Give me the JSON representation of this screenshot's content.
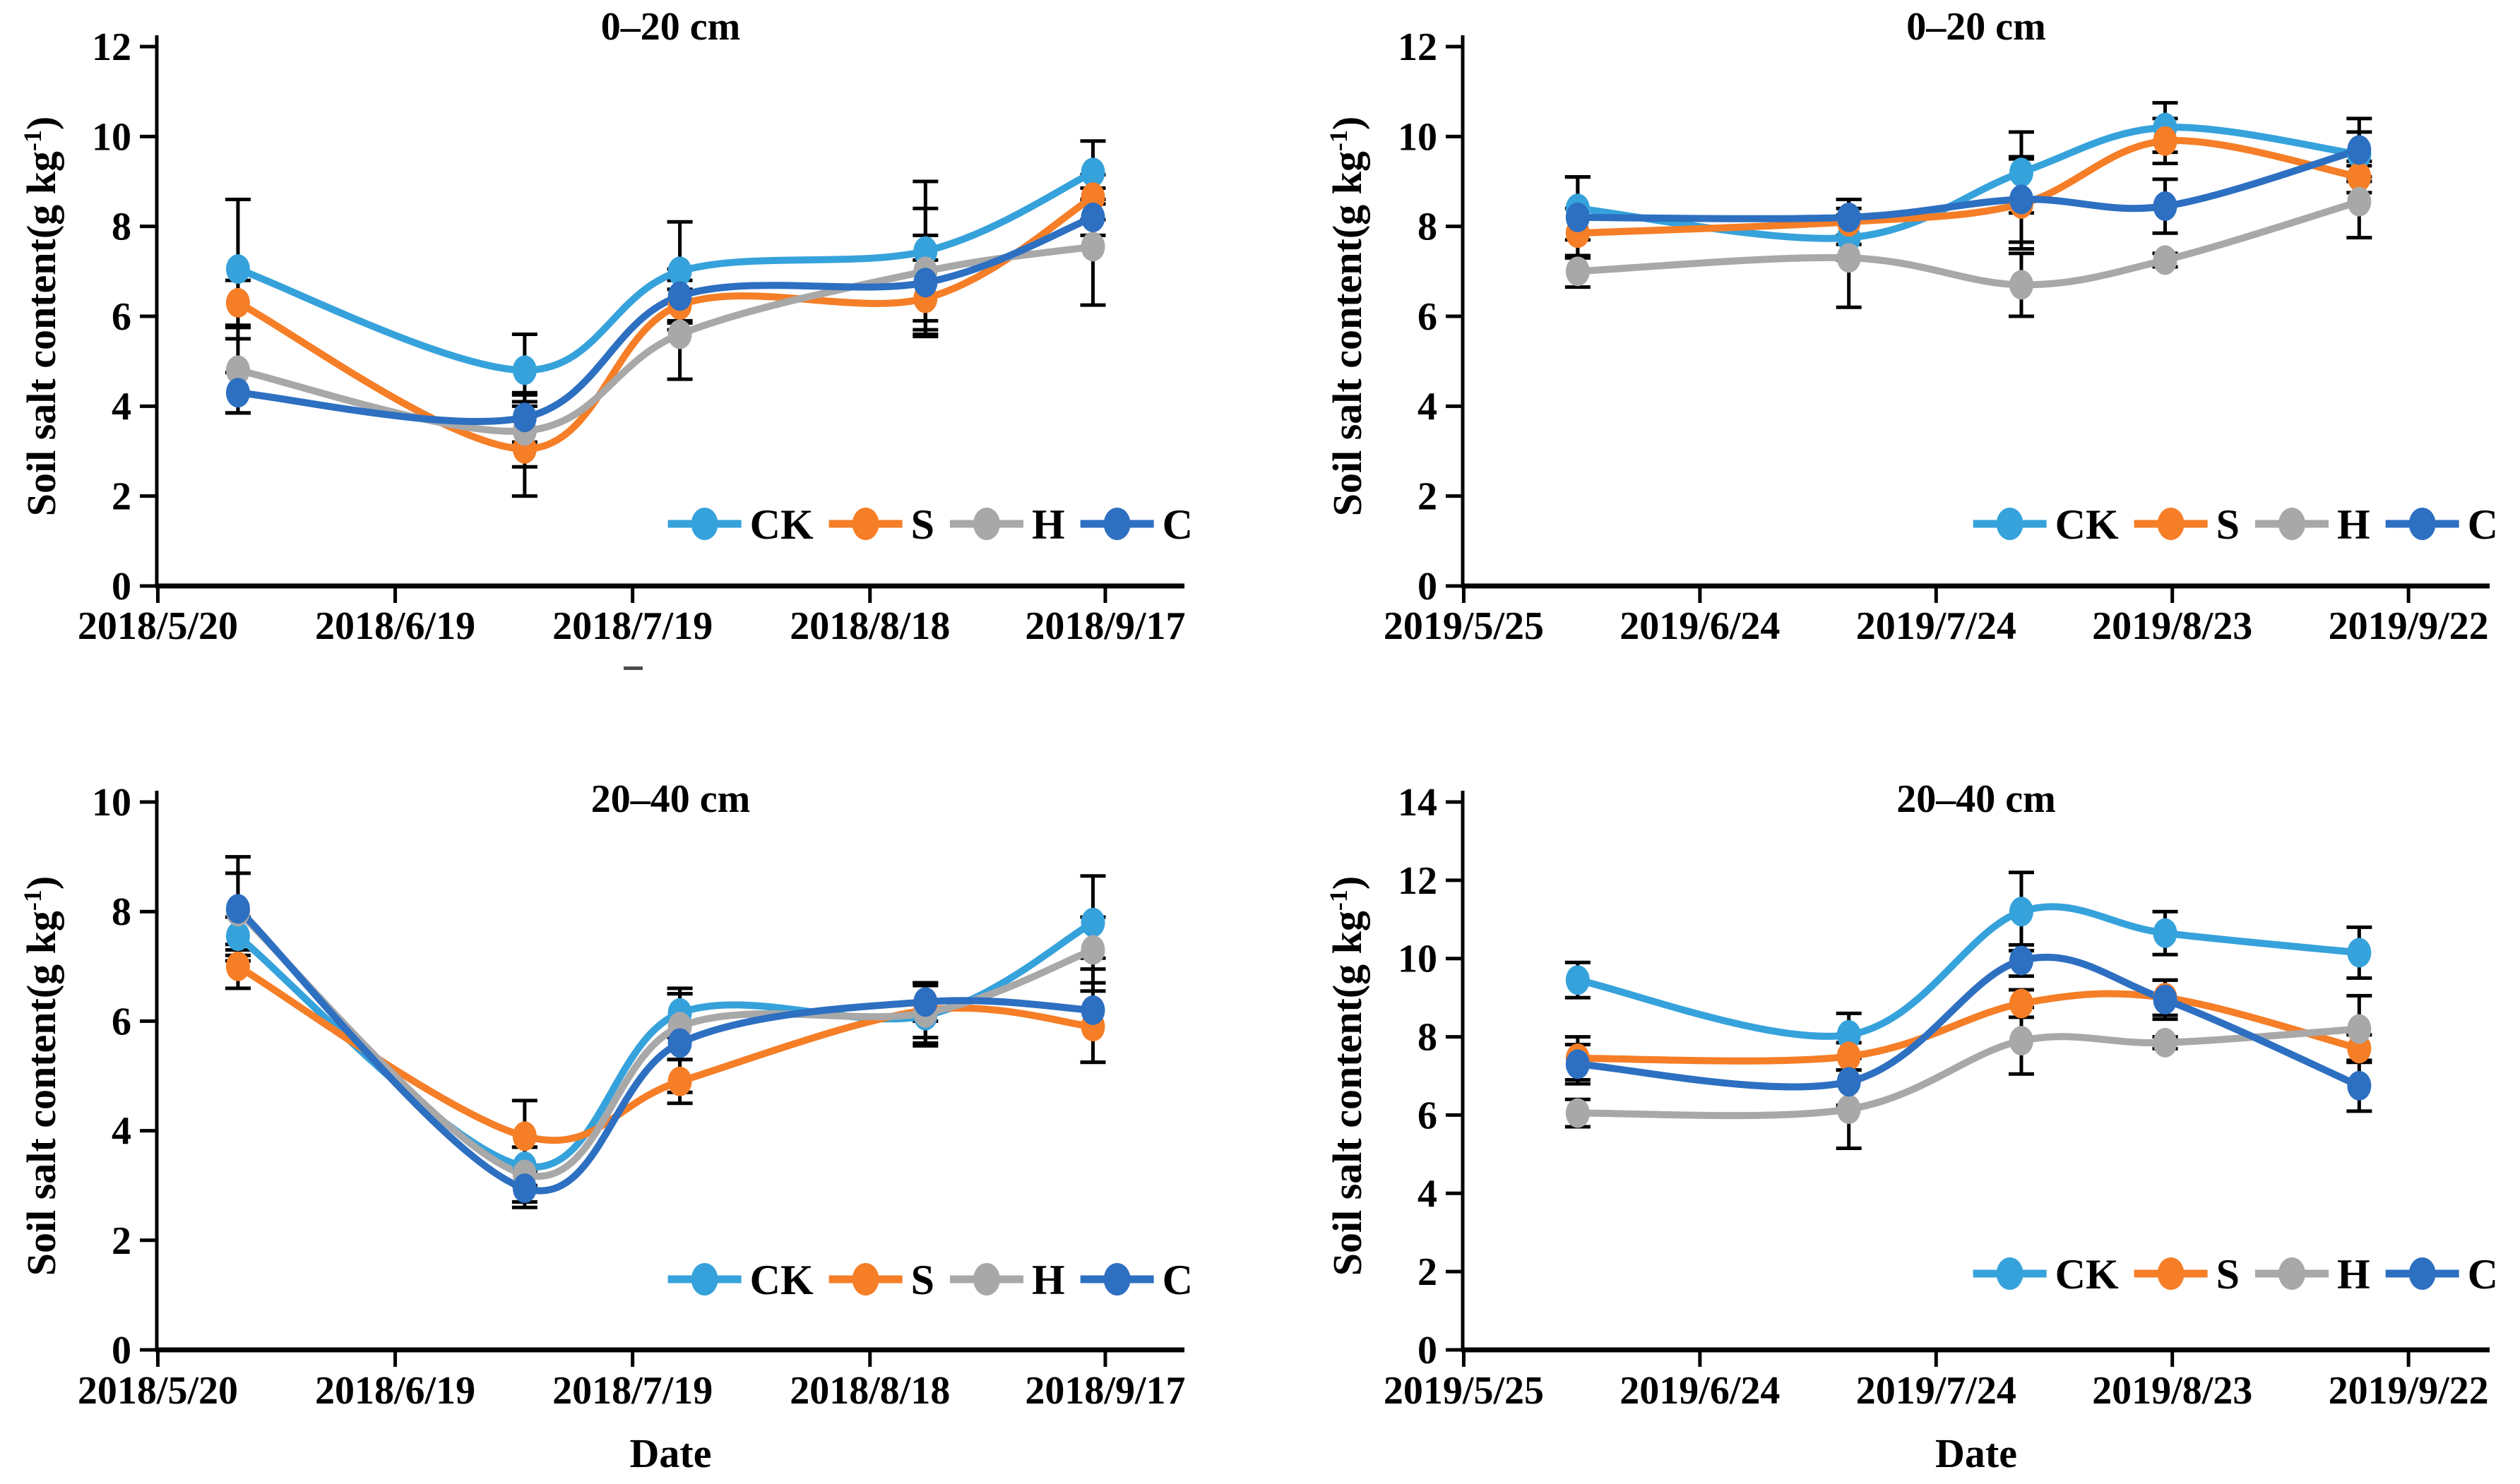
{
  "figure": {
    "ylabel": {
      "text": "Soil salt content(g kg",
      "sup": "-1",
      "close": ")"
    },
    "xlabel": "Date",
    "legend_order": [
      "CK",
      "S",
      "H",
      "C"
    ],
    "colors": {
      "CK": "#36A2DB",
      "S": "#F57E27",
      "H": "#A8A8A8",
      "C": "#2D6FC1"
    },
    "axis_color": "#000000",
    "background": "#ffffff"
  },
  "chart_data": [
    {
      "id": "0-20cm-2018",
      "type": "line",
      "title": "0–20 cm",
      "ylim": [
        0,
        12
      ],
      "ytick_labels": [
        "0",
        "2",
        "4",
        "6",
        "8",
        "10",
        "12"
      ],
      "x_tick_labels": [
        "2018/5/20",
        "2018/6/19",
        "2018/7/19",
        "2018/8/18",
        "2018/9/17"
      ],
      "x_tick_positions": [
        0.001,
        0.232,
        0.463,
        0.694,
        0.923
      ],
      "x_point_positions": [
        0.079,
        0.358,
        0.509,
        0.748,
        0.911
      ],
      "has_date_label": false,
      "legend": [
        "CK",
        "S",
        "H",
        "C"
      ],
      "series": [
        {
          "name": "CK",
          "values": [
            7.05,
            4.8,
            7.0,
            7.45,
            9.2
          ],
          "errors": [
            1.55,
            0.8,
            1.1,
            1.55,
            0.7
          ]
        },
        {
          "name": "S",
          "values": [
            6.3,
            3.05,
            6.25,
            6.4,
            8.65
          ],
          "errors": [
            0.5,
            1.05,
            0.55,
            0.85,
            0.5
          ]
        },
        {
          "name": "H",
          "values": [
            4.8,
            3.45,
            5.6,
            7.0,
            7.55
          ],
          "errors": [
            0.95,
            0.8,
            1.0,
            1.4,
            1.3
          ]
        },
        {
          "name": "C",
          "values": [
            4.3,
            3.75,
            6.45,
            6.75,
            8.2
          ],
          "errors": [
            0.45,
            0.55,
            0.6,
            1.05,
            0.4
          ]
        }
      ]
    },
    {
      "id": "0-20cm-2019",
      "type": "line",
      "title": "0–20 cm",
      "ylim": [
        0,
        12
      ],
      "ytick_labels": [
        "0",
        "2",
        "4",
        "6",
        "8",
        "10",
        "12"
      ],
      "x_tick_labels": [
        "2019/5/25",
        "2019/6/24",
        "2019/7/24",
        "2019/8/23",
        "2019/9/22"
      ],
      "x_tick_positions": [
        0.001,
        0.231,
        0.461,
        0.691,
        0.921
      ],
      "x_point_positions": [
        0.112,
        0.376,
        0.544,
        0.684,
        0.873
      ],
      "has_date_label": false,
      "legend": [
        "CK",
        "S",
        "H",
        "C"
      ],
      "series": [
        {
          "name": "CK",
          "values": [
            8.4,
            7.75,
            9.2,
            10.2,
            9.6
          ],
          "errors": [
            0.7,
            0.5,
            0.9,
            0.55,
            0.5
          ]
        },
        {
          "name": "S",
          "values": [
            7.85,
            8.1,
            8.5,
            9.9,
            9.1
          ],
          "errors": [
            0.55,
            0.5,
            1.0,
            0.5,
            0.35
          ]
        },
        {
          "name": "H",
          "values": [
            7.0,
            7.3,
            6.7,
            7.25,
            8.55
          ],
          "errors": [
            0.35,
            1.1,
            0.7,
            0.15,
            0.8
          ]
        },
        {
          "name": "C",
          "values": [
            8.2,
            8.2,
            8.6,
            8.45,
            9.7
          ],
          "errors": [
            0.9,
            0.4,
            0.95,
            0.6,
            0.7
          ]
        }
      ]
    },
    {
      "id": "20-40cm-2018",
      "type": "line",
      "title": "20–40 cm",
      "ylim": [
        0,
        10
      ],
      "ytick_labels": [
        "0",
        "2",
        "4",
        "6",
        "8",
        "10"
      ],
      "x_tick_labels": [
        "2018/5/20",
        "2018/6/19",
        "2018/7/19",
        "2018/8/18",
        "2018/9/17"
      ],
      "x_tick_positions": [
        0.001,
        0.232,
        0.463,
        0.694,
        0.923
      ],
      "x_point_positions": [
        0.079,
        0.358,
        0.509,
        0.748,
        0.911
      ],
      "has_date_label": true,
      "legend": [
        "CK",
        "S",
        "H",
        "C"
      ],
      "series": [
        {
          "name": "CK",
          "values": [
            7.55,
            3.35,
            6.15,
            6.1,
            7.8
          ],
          "errors": [
            0.35,
            0.35,
            0.45,
            0.55,
            0.85
          ]
        },
        {
          "name": "S",
          "values": [
            7.0,
            3.9,
            4.9,
            6.2,
            5.9
          ],
          "errors": [
            0.4,
            0.65,
            0.4,
            0.5,
            0.65
          ]
        },
        {
          "name": "H",
          "values": [
            8.0,
            3.2,
            5.9,
            6.15,
            7.3
          ],
          "errors": [
            0.7,
            0.5,
            0.6,
            0.55,
            0.6
          ]
        },
        {
          "name": "C",
          "values": [
            8.05,
            2.95,
            5.6,
            6.35,
            6.2
          ],
          "errors": [
            0.95,
            0.35,
            0.9,
            0.35,
            0.95
          ]
        }
      ]
    },
    {
      "id": "20-40cm-2019",
      "type": "line",
      "title": "20–40 cm",
      "ylim": [
        0,
        14
      ],
      "ytick_labels": [
        "0",
        "2",
        "4",
        "6",
        "8",
        "10",
        "12",
        "14"
      ],
      "x_tick_labels": [
        "2019/5/25",
        "2019/6/24",
        "2019/7/24",
        "2019/8/23",
        "2019/9/22"
      ],
      "x_tick_positions": [
        0.001,
        0.231,
        0.461,
        0.691,
        0.921
      ],
      "x_point_positions": [
        0.112,
        0.376,
        0.544,
        0.684,
        0.873
      ],
      "has_date_label": true,
      "legend": [
        "CK",
        "S",
        "H",
        "C"
      ],
      "series": [
        {
          "name": "CK",
          "values": [
            9.45,
            8.05,
            11.2,
            10.65,
            10.15
          ],
          "errors": [
            0.45,
            0.55,
            1.0,
            0.55,
            0.65
          ]
        },
        {
          "name": "S",
          "values": [
            7.45,
            7.5,
            8.85,
            9.0,
            7.7
          ],
          "errors": [
            0.55,
            0.35,
            0.35,
            0.45,
            0.35
          ]
        },
        {
          "name": "H",
          "values": [
            6.05,
            6.15,
            7.9,
            7.85,
            8.2
          ],
          "errors": [
            0.35,
            1.0,
            0.85,
            0.15,
            0.85
          ]
        },
        {
          "name": "C",
          "values": [
            7.3,
            6.85,
            9.95,
            8.95,
            6.75
          ],
          "errors": [
            0.5,
            0.6,
            0.4,
            0.5,
            0.65
          ]
        }
      ]
    }
  ]
}
